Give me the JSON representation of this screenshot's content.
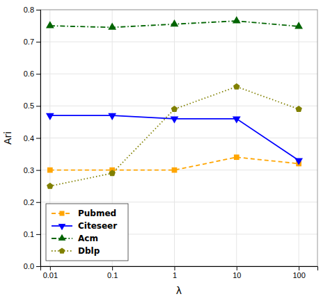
{
  "chart_data": {
    "type": "line",
    "x": [
      0.01,
      0.1,
      1,
      10,
      100
    ],
    "xlabel": "λ",
    "ylabel": "Ari",
    "log": "x",
    "xlim": [
      0.007,
      200
    ],
    "xticks": [
      0.01,
      0.1,
      1,
      10,
      100
    ],
    "ylim": [
      0.0,
      0.8
    ],
    "yticks": [
      {
        "value": 0.0,
        "label": "0.0"
      },
      0.1,
      0.2,
      0.3,
      0.4,
      0.5,
      0.6,
      0.7,
      0.8
    ],
    "grid": true,
    "legend": "lower left",
    "series": [
      {
        "name": "Pubmed",
        "color": "#FFA500",
        "marker": "square",
        "line_style": "dashed",
        "values": [
          0.3,
          0.3,
          0.3,
          0.34,
          0.32
        ]
      },
      {
        "name": "Citeseer",
        "color": "#0000FF",
        "marker": "triangle-down",
        "line_style": "solid",
        "values": [
          0.47,
          0.47,
          0.46,
          0.46,
          0.33
        ]
      },
      {
        "name": "Acm",
        "color": "#006400",
        "marker": "triangle-up",
        "line_style": "dash-dot",
        "values": [
          0.75,
          0.745,
          0.755,
          0.765,
          0.748
        ]
      },
      {
        "name": "Dblp",
        "color": "#808000",
        "marker": "pentagon",
        "line_style": "dotted",
        "values": [
          0.25,
          0.29,
          0.49,
          0.56,
          0.49
        ]
      }
    ]
  }
}
